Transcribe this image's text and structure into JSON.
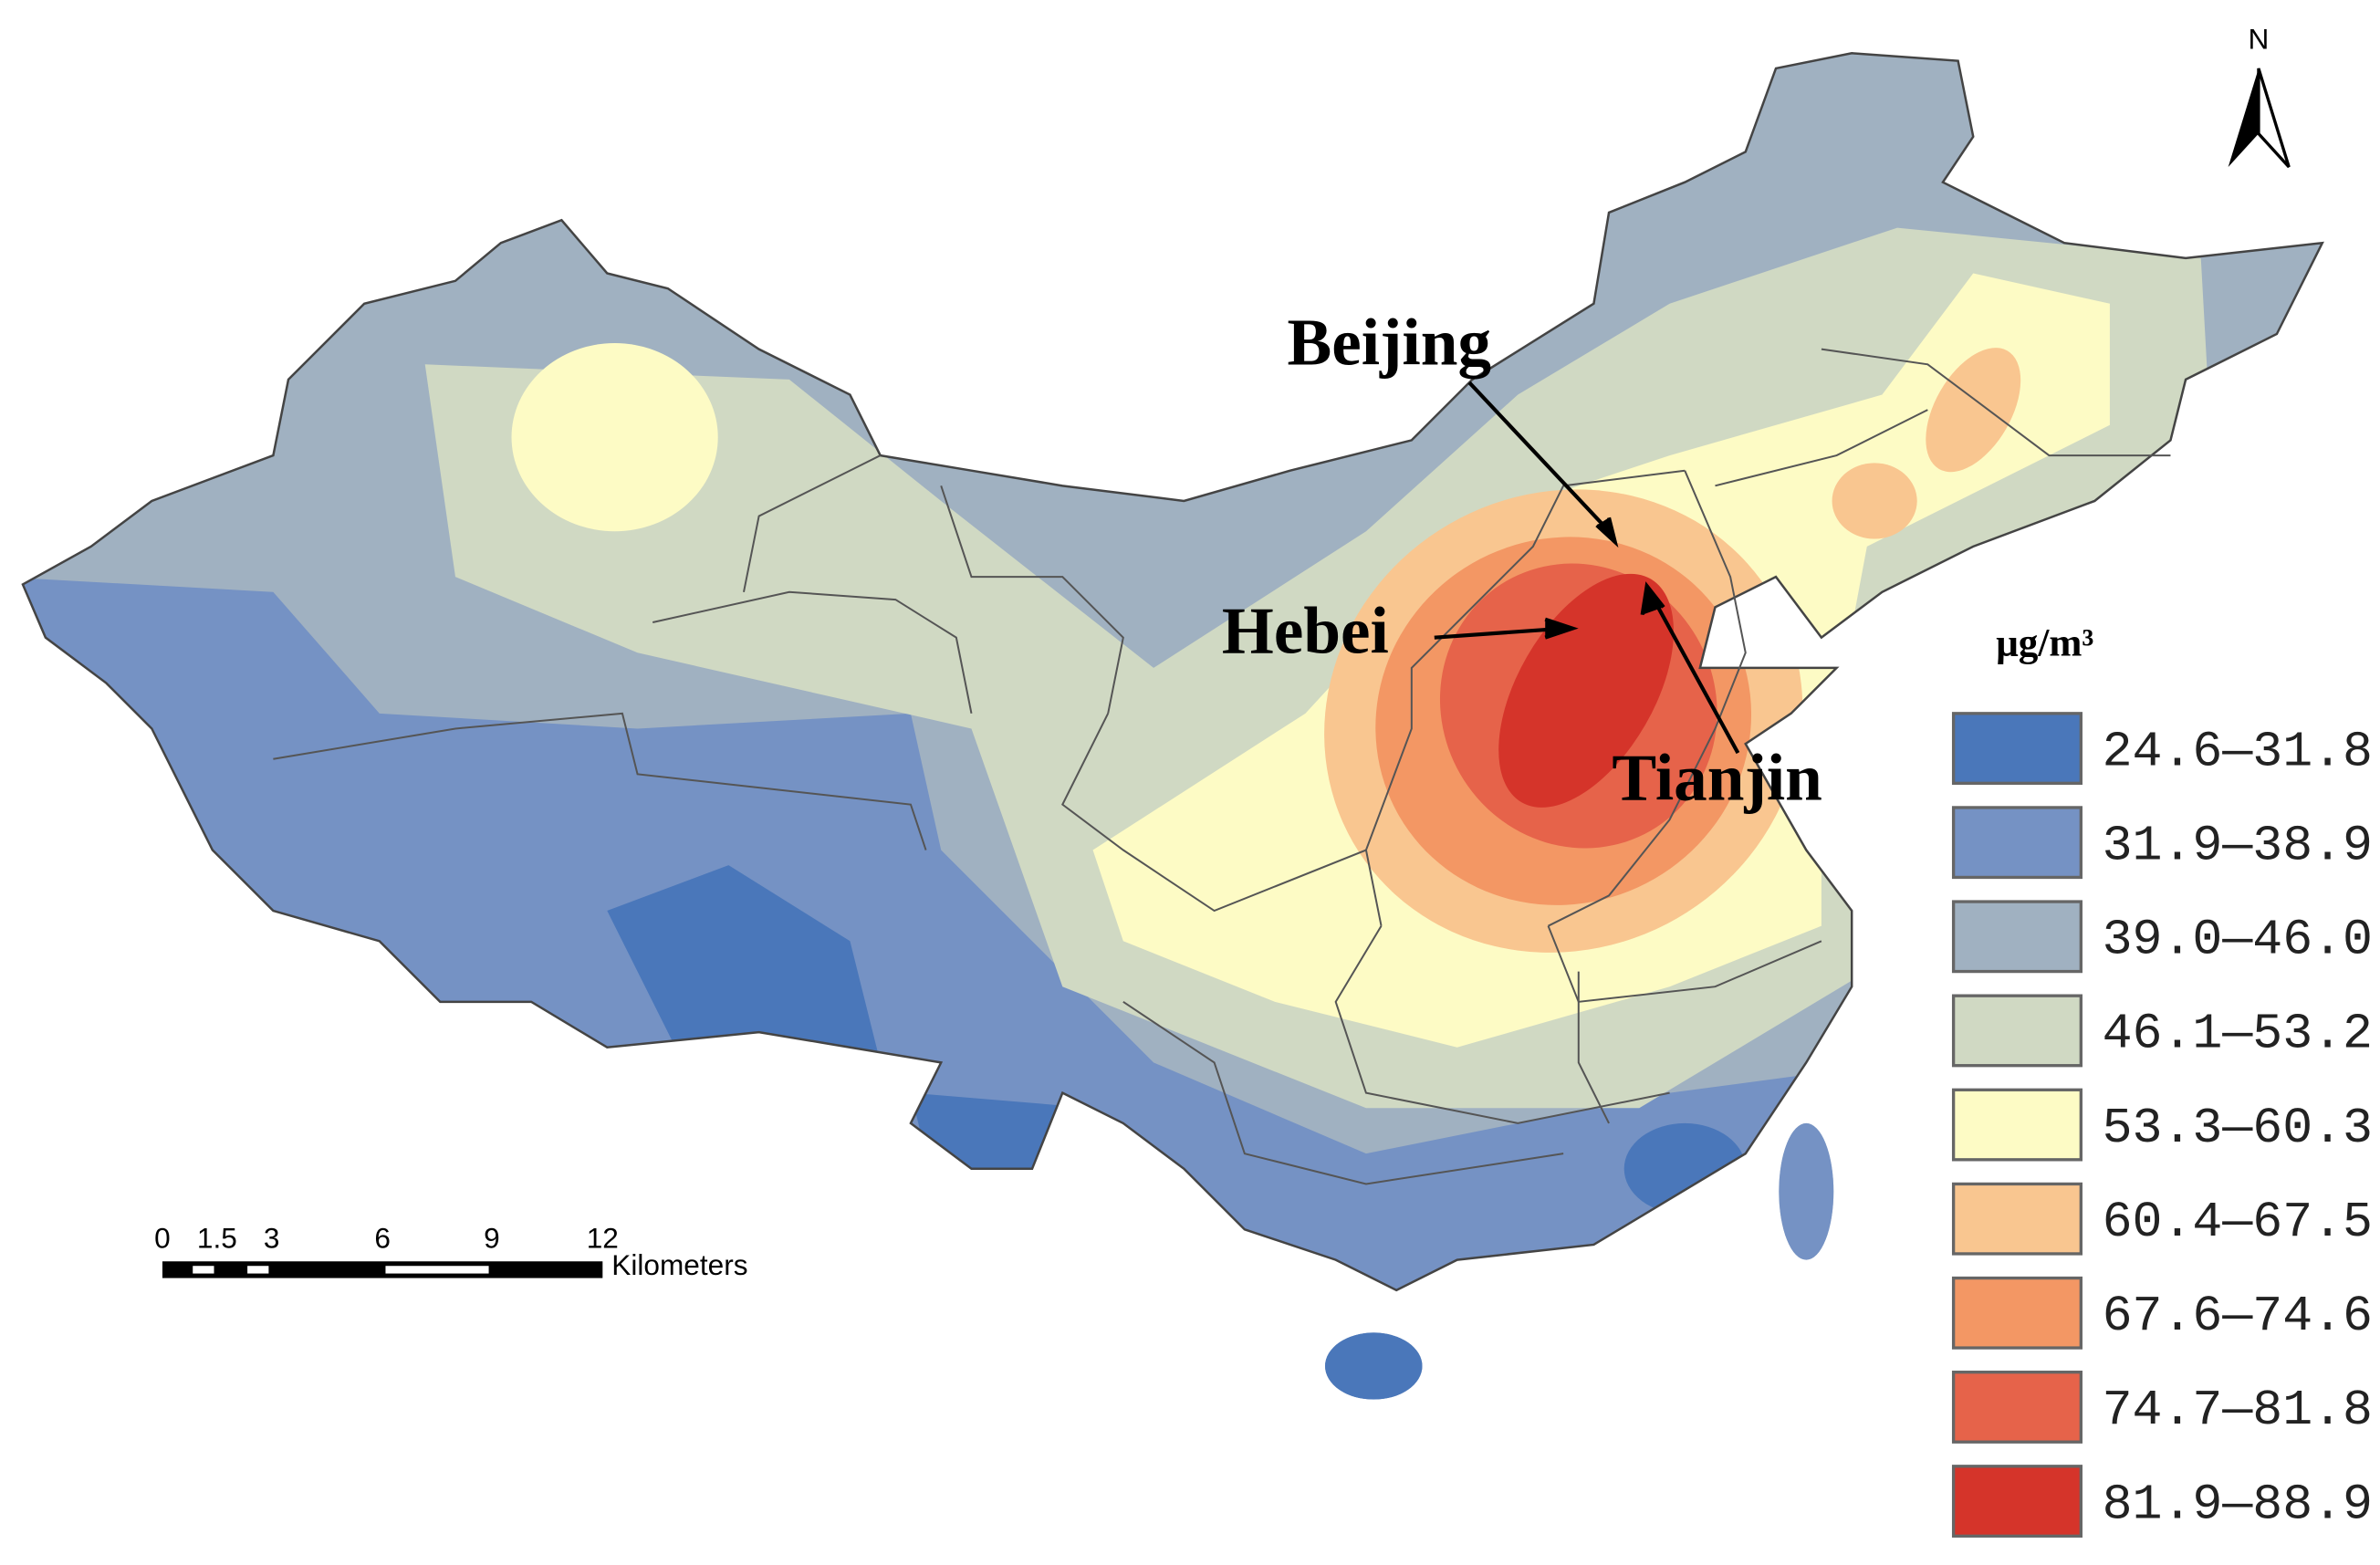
{
  "map": {
    "labels": [
      "Beijing",
      "Hebei",
      "Tianjin"
    ],
    "north": "N",
    "legend": {
      "title": "μg/m³",
      "items": [
        {
          "label": "24.6—31.8",
          "color": "#4a77ba"
        },
        {
          "label": "31.9—38.9",
          "color": "#7592c4"
        },
        {
          "label": "39.0—46.0",
          "color": "#a0b1c1"
        },
        {
          "label": "46.1—53.2",
          "color": "#d0d9c3"
        },
        {
          "label": "53.3—60.3",
          "color": "#fdfbc5"
        },
        {
          "label": "60.4—67.5",
          "color": "#f9c690"
        },
        {
          "label": "67.6—74.6",
          "color": "#f39764"
        },
        {
          "label": "74.7—81.8",
          "color": "#e6634a"
        },
        {
          "label": "81.9—88.9",
          "color": "#d5342a"
        }
      ]
    },
    "scale_bar": {
      "ticks": [
        "0",
        "1.5",
        "3",
        "6",
        "9",
        "12"
      ],
      "unit": "Kilometers"
    }
  }
}
